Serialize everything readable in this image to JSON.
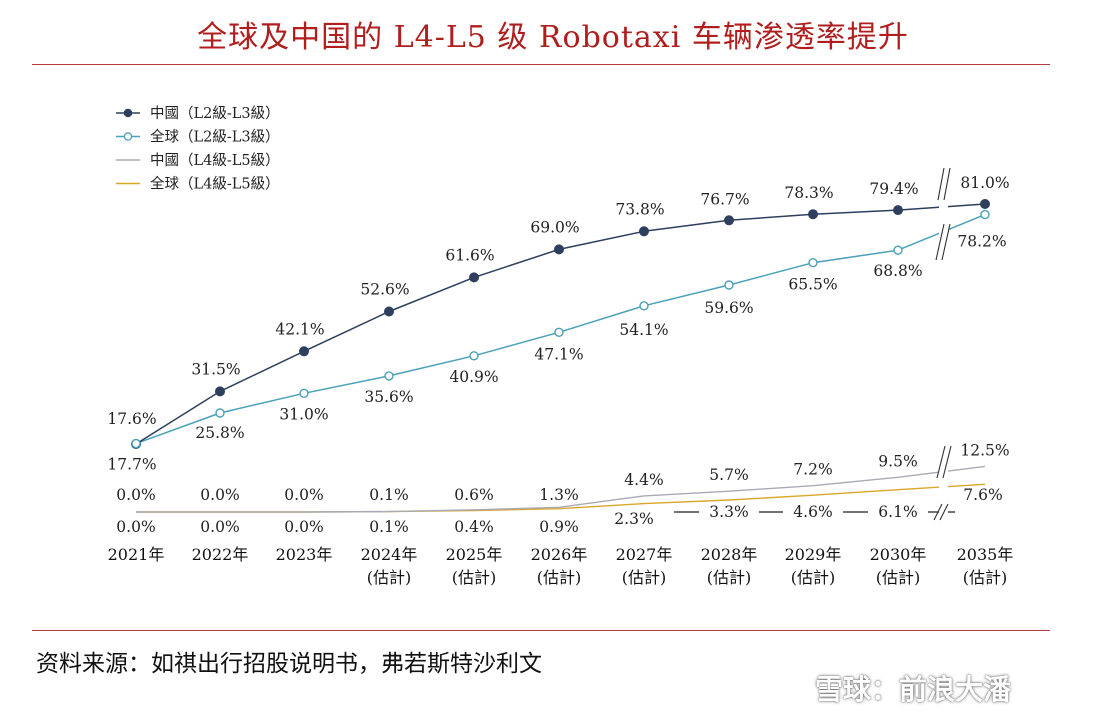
{
  "title": "全球及中国的 L4-L5 级 Robotaxi 车辆渗透率提升",
  "source": "资料来源：如祺出行招股说明书，弗若斯特沙利文",
  "watermark": "雪球：前浪大潘",
  "chart_data": {
    "type": "line",
    "categories": [
      [
        "2021年",
        ""
      ],
      [
        "2022年",
        ""
      ],
      [
        "2023年",
        ""
      ],
      [
        "2024年",
        "(估計)"
      ],
      [
        "2025年",
        "(估計)"
      ],
      [
        "2026年",
        "(估計)"
      ],
      [
        "2027年",
        "(估計)"
      ],
      [
        "2028年",
        "(估計)"
      ],
      [
        "2029年",
        "(估計)"
      ],
      [
        "2030年",
        "(估計)"
      ],
      [
        "2035年",
        "(估計)"
      ]
    ],
    "axis_break": "between 2030 and 2035",
    "ylim": [
      0,
      100
    ],
    "grid": false,
    "legend_position": "top-left",
    "series": [
      {
        "name": "中國（L2級-L3級）",
        "color": "#2e3f5e",
        "marker": "filled-circle",
        "values": [
          17.6,
          31.5,
          42.1,
          52.6,
          61.6,
          69.0,
          73.8,
          76.7,
          78.3,
          79.4,
          81.0
        ],
        "labels": [
          "17.6%",
          "31.5%",
          "42.1%",
          "52.6%",
          "61.6%",
          "69.0%",
          "73.8%",
          "76.7%",
          "78.3%",
          "79.4%",
          "81.0%"
        ]
      },
      {
        "name": "全球（L2級-L3級）",
        "color": "#4aa0b8",
        "marker": "open-circle",
        "values": [
          17.7,
          25.8,
          31.0,
          35.6,
          40.9,
          47.1,
          54.1,
          59.6,
          65.5,
          68.8,
          78.2
        ],
        "labels": [
          "17.7%",
          "25.8%",
          "31.0%",
          "35.6%",
          "40.9%",
          "47.1%",
          "54.1%",
          "59.6%",
          "65.5%",
          "68.8%",
          "78.2%"
        ]
      },
      {
        "name": "中國（L4級-L5級）",
        "color": "#a8aab6",
        "marker": "none",
        "values": [
          0.0,
          0.0,
          0.0,
          0.1,
          0.6,
          1.3,
          4.4,
          5.7,
          7.2,
          9.5,
          12.5
        ],
        "labels": [
          "0.0%",
          "0.0%",
          "0.0%",
          "0.1%",
          "0.6%",
          "1.3%",
          "4.4%",
          "5.7%",
          "7.2%",
          "9.5%",
          "12.5%"
        ]
      },
      {
        "name": "全球（L4級-L5級）",
        "color": "#d9a72c",
        "marker": "none",
        "values": [
          0.0,
          0.0,
          0.0,
          0.1,
          0.4,
          0.9,
          2.3,
          3.3,
          4.6,
          6.1,
          7.6
        ],
        "labels": [
          "0.0%",
          "0.0%",
          "0.0%",
          "0.1%",
          "0.4%",
          "0.9%",
          "2.3%",
          "3.3%",
          "4.6%",
          "6.1%",
          "7.6%"
        ]
      }
    ]
  }
}
